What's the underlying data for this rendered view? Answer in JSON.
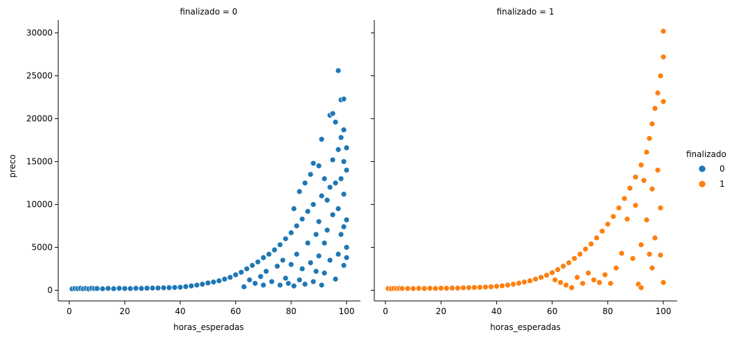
{
  "chart_data": {
    "type": "scatter",
    "ylabel": "preco",
    "ylim": [
      -1250,
      31500
    ],
    "yticks": [
      0,
      5000,
      10000,
      15000,
      20000,
      25000,
      30000
    ],
    "legend": {
      "title": "finalizado",
      "placement": "right",
      "entries": [
        {
          "label": "0",
          "color": "#1f77b4"
        },
        {
          "label": "1",
          "color": "#ff7f0e"
        }
      ]
    },
    "panels": [
      {
        "title": "finalizado = 0",
        "xlabel": "horas_esperadas",
        "xlim": [
          -4,
          105
        ],
        "xticks": [
          0,
          20,
          40,
          60,
          80,
          100
        ],
        "color": "#1f77b4",
        "points": [
          [
            1,
            150
          ],
          [
            2,
            200
          ],
          [
            3,
            180
          ],
          [
            4,
            220
          ],
          [
            5,
            170
          ],
          [
            6,
            210
          ],
          [
            7,
            160
          ],
          [
            8,
            230
          ],
          [
            9,
            190
          ],
          [
            10,
            200
          ],
          [
            12,
            170
          ],
          [
            14,
            210
          ],
          [
            16,
            180
          ],
          [
            18,
            220
          ],
          [
            20,
            200
          ],
          [
            22,
            190
          ],
          [
            24,
            230
          ],
          [
            26,
            210
          ],
          [
            28,
            240
          ],
          [
            30,
            250
          ],
          [
            32,
            260
          ],
          [
            34,
            280
          ],
          [
            36,
            300
          ],
          [
            38,
            320
          ],
          [
            40,
            350
          ],
          [
            42,
            420
          ],
          [
            44,
            500
          ],
          [
            46,
            600
          ],
          [
            48,
            700
          ],
          [
            50,
            850
          ],
          [
            52,
            950
          ],
          [
            54,
            1100
          ],
          [
            56,
            1300
          ],
          [
            58,
            1500
          ],
          [
            60,
            1800
          ],
          [
            62,
            2100
          ],
          [
            63,
            400
          ],
          [
            64,
            2500
          ],
          [
            65,
            1200
          ],
          [
            66,
            2900
          ],
          [
            67,
            800
          ],
          [
            68,
            3300
          ],
          [
            69,
            1600
          ],
          [
            70,
            3800
          ],
          [
            70,
            600
          ],
          [
            71,
            2200
          ],
          [
            72,
            4200
          ],
          [
            73,
            1000
          ],
          [
            74,
            4700
          ],
          [
            75,
            2800
          ],
          [
            76,
            600
          ],
          [
            76,
            5300
          ],
          [
            77,
            3500
          ],
          [
            78,
            1400
          ],
          [
            78,
            6000
          ],
          [
            79,
            800
          ],
          [
            80,
            6700
          ],
          [
            80,
            3000
          ],
          [
            81,
            9500
          ],
          [
            81,
            500
          ],
          [
            82,
            7500
          ],
          [
            82,
            4200
          ],
          [
            83,
            11500
          ],
          [
            83,
            1200
          ],
          [
            84,
            8300
          ],
          [
            84,
            2500
          ],
          [
            85,
            12500
          ],
          [
            85,
            700
          ],
          [
            86,
            9200
          ],
          [
            86,
            5500
          ],
          [
            87,
            13500
          ],
          [
            87,
            3200
          ],
          [
            88,
            14800
          ],
          [
            88,
            10000
          ],
          [
            88,
            1000
          ],
          [
            89,
            6500
          ],
          [
            89,
            2200
          ],
          [
            90,
            14500
          ],
          [
            90,
            8000
          ],
          [
            90,
            4000
          ],
          [
            91,
            17600
          ],
          [
            91,
            11000
          ],
          [
            91,
            600
          ],
          [
            92,
            13000
          ],
          [
            92,
            5500
          ],
          [
            92,
            2000
          ],
          [
            93,
            10500
          ],
          [
            93,
            7000
          ],
          [
            94,
            12000
          ],
          [
            94,
            3500
          ],
          [
            94,
            20400
          ],
          [
            95,
            20600
          ],
          [
            95,
            15200
          ],
          [
            95,
            8800
          ],
          [
            96,
            19600
          ],
          [
            96,
            12500
          ],
          [
            96,
            1300
          ],
          [
            97,
            25600
          ],
          [
            97,
            16400
          ],
          [
            97,
            9500
          ],
          [
            97,
            4200
          ],
          [
            98,
            17800
          ],
          [
            98,
            13000
          ],
          [
            98,
            6500
          ],
          [
            98,
            22200
          ],
          [
            99,
            22300
          ],
          [
            99,
            18700
          ],
          [
            99,
            15000
          ],
          [
            99,
            11200
          ],
          [
            99,
            7400
          ],
          [
            99,
            2900
          ],
          [
            100,
            16600
          ],
          [
            100,
            14000
          ],
          [
            100,
            8200
          ],
          [
            100,
            5000
          ],
          [
            100,
            3800
          ]
        ]
      },
      {
        "title": "finalizado = 1",
        "xlabel": "horas_esperadas",
        "xlim": [
          -4,
          105
        ],
        "xticks": [
          0,
          20,
          40,
          60,
          80,
          100
        ],
        "color": "#ff7f0e",
        "points": [
          [
            1,
            200
          ],
          [
            2,
            180
          ],
          [
            3,
            210
          ],
          [
            4,
            190
          ],
          [
            5,
            220
          ],
          [
            6,
            200
          ],
          [
            8,
            210
          ],
          [
            10,
            190
          ],
          [
            12,
            220
          ],
          [
            14,
            200
          ],
          [
            16,
            230
          ],
          [
            18,
            210
          ],
          [
            20,
            240
          ],
          [
            22,
            230
          ],
          [
            24,
            260
          ],
          [
            26,
            250
          ],
          [
            28,
            280
          ],
          [
            30,
            300
          ],
          [
            32,
            320
          ],
          [
            34,
            340
          ],
          [
            36,
            370
          ],
          [
            38,
            400
          ],
          [
            40,
            450
          ],
          [
            42,
            520
          ],
          [
            44,
            600
          ],
          [
            46,
            700
          ],
          [
            48,
            820
          ],
          [
            50,
            950
          ],
          [
            52,
            1100
          ],
          [
            54,
            1300
          ],
          [
            56,
            1500
          ],
          [
            58,
            1750
          ],
          [
            60,
            2050
          ],
          [
            61,
            1200
          ],
          [
            62,
            2400
          ],
          [
            63,
            900
          ],
          [
            64,
            2800
          ],
          [
            65,
            600
          ],
          [
            66,
            3200
          ],
          [
            67,
            300
          ],
          [
            68,
            3700
          ],
          [
            69,
            1500
          ],
          [
            70,
            4200
          ],
          [
            71,
            800
          ],
          [
            72,
            4800
          ],
          [
            73,
            2000
          ],
          [
            74,
            5400
          ],
          [
            75,
            1200
          ],
          [
            76,
            6100
          ],
          [
            77,
            900
          ],
          [
            78,
            6900
          ],
          [
            79,
            1800
          ],
          [
            80,
            7700
          ],
          [
            81,
            800
          ],
          [
            82,
            8600
          ],
          [
            83,
            2600
          ],
          [
            84,
            9600
          ],
          [
            85,
            4300
          ],
          [
            86,
            10700
          ],
          [
            87,
            8300
          ],
          [
            88,
            11900
          ],
          [
            89,
            3700
          ],
          [
            90,
            13200
          ],
          [
            90,
            9900
          ],
          [
            91,
            700
          ],
          [
            92,
            14600
          ],
          [
            92,
            5300
          ],
          [
            92,
            300
          ],
          [
            93,
            12800
          ],
          [
            94,
            16100
          ],
          [
            94,
            8200
          ],
          [
            95,
            17700
          ],
          [
            95,
            4200
          ],
          [
            96,
            19400
          ],
          [
            96,
            11800
          ],
          [
            96,
            2600
          ],
          [
            97,
            21200
          ],
          [
            97,
            6100
          ],
          [
            98,
            23000
          ],
          [
            98,
            14000
          ],
          [
            99,
            25000
          ],
          [
            99,
            9600
          ],
          [
            99,
            4100
          ],
          [
            100,
            27200
          ],
          [
            100,
            30200
          ],
          [
            100,
            22000
          ],
          [
            100,
            900
          ]
        ]
      }
    ]
  }
}
